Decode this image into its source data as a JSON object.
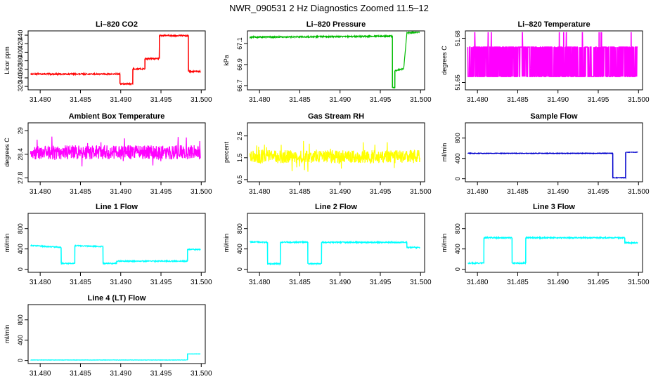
{
  "figure_title": "NWR_090531  2 Hz Diagnostics Zoomed 11.5–12",
  "x_ticks": [
    "31.480",
    "31.485",
    "31.490",
    "31.495",
    "31.500"
  ],
  "chart_data": [
    {
      "type": "line",
      "title": "Li–820 CO2",
      "xlabel": "",
      "ylabel": "Licor ppm",
      "xlim": [
        31.4785,
        31.5005
      ],
      "ylim": [
        312,
        450
      ],
      "y_ticks": [
        320,
        340,
        360,
        380,
        400,
        420,
        440
      ],
      "color": "#ff0000",
      "series": [
        {
          "name": "CO2",
          "x": [
            31.4788,
            31.4899,
            31.4899,
            31.4915,
            31.4915,
            31.493,
            31.493,
            31.4948,
            31.4948,
            31.4984,
            31.4984,
            31.4999
          ],
          "y": [
            349,
            349,
            326,
            326,
            361,
            361,
            385,
            385,
            439,
            439,
            355,
            355
          ]
        }
      ],
      "noise": 1.5
    },
    {
      "type": "line",
      "title": "Li–820 Pressure",
      "xlabel": "",
      "ylabel": "kPa",
      "xlim": [
        31.4785,
        31.5005
      ],
      "ylim": [
        66.66,
        67.22
      ],
      "y_ticks": [
        66.7,
        66.9,
        67.1
      ],
      "color": "#00bb00",
      "series": [
        {
          "name": "Pressure",
          "x": [
            31.4788,
            31.4965,
            31.4965,
            31.4968,
            31.4968,
            31.4979,
            31.4979,
            31.4983,
            31.4983,
            31.4999
          ],
          "y": [
            67.16,
            67.17,
            66.68,
            66.68,
            66.84,
            66.86,
            66.86,
            67.2,
            67.2,
            67.21
          ]
        }
      ],
      "noise": 0.006
    },
    {
      "type": "line",
      "title": "Li–820 Temperature",
      "xlabel": "",
      "ylabel": "degrees C",
      "xlim": [
        31.4785,
        31.5005
      ],
      "ylim": [
        51.645,
        51.685
      ],
      "y_ticks": [
        51.65,
        51.68
      ],
      "color": "#ff00ff",
      "series": [
        {
          "name": "Temperature",
          "x": [
            31.4788,
            31.4999
          ],
          "y": [
            51.664,
            51.664
          ]
        }
      ],
      "noise": 0.01
    },
    {
      "type": "line",
      "title": "Ambient Box Temperature",
      "xlabel": "",
      "ylabel": "degrees C",
      "xlim": [
        31.4785,
        31.5005
      ],
      "ylim": [
        27.7,
        29.2
      ],
      "y_ticks": [
        27.8,
        28.4,
        29.0
      ],
      "color": "#ff00ff",
      "series": [
        {
          "name": "Box temperature",
          "x": [
            31.4788,
            31.4999
          ],
          "y": [
            28.45,
            28.45
          ]
        }
      ],
      "noise": 0.18
    },
    {
      "type": "line",
      "title": "Gas Stream RH",
      "xlabel": "",
      "ylabel": "percent",
      "xlim": [
        31.4785,
        31.5005
      ],
      "ylim": [
        0.4,
        3.1
      ],
      "y_ticks": [
        0.5,
        1.5,
        2.5
      ],
      "color": "#ffff00",
      "series": [
        {
          "name": "RH",
          "x": [
            31.4788,
            31.4999
          ],
          "y": [
            1.55,
            1.55
          ]
        }
      ],
      "noise": 0.3
    },
    {
      "type": "line",
      "title": "Sample Flow",
      "xlabel": "",
      "ylabel": "ml/min",
      "xlim": [
        31.4785,
        31.5005
      ],
      "ylim": [
        -60,
        1100
      ],
      "y_ticks": [
        0,
        400,
        800
      ],
      "color": "#0000cc",
      "series": [
        {
          "name": "Sample flow",
          "x": [
            31.4788,
            31.4968,
            31.4968,
            31.4984,
            31.4984,
            31.4999
          ],
          "y": [
            500,
            500,
            20,
            20,
            520,
            520
          ]
        }
      ],
      "noise": 6
    },
    {
      "type": "line",
      "title": "Line 1 Flow",
      "xlabel": "",
      "ylabel": "ml/min",
      "xlim": [
        31.4785,
        31.5005
      ],
      "ylim": [
        -60,
        1100
      ],
      "y_ticks": [
        0,
        400,
        800
      ],
      "color": "#00ffff",
      "series": [
        {
          "name": "Line 1",
          "x": [
            31.4788,
            31.4826,
            31.4826,
            31.4843,
            31.4843,
            31.4878,
            31.4878,
            31.4895,
            31.4895,
            31.4983,
            31.4983,
            31.4999
          ],
          "y": [
            470,
            430,
            115,
            115,
            465,
            445,
            115,
            115,
            160,
            160,
            390,
            390
          ]
        }
      ],
      "noise": 10
    },
    {
      "type": "line",
      "title": "Line 2 Flow",
      "xlabel": "",
      "ylabel": "ml/min",
      "xlim": [
        31.4785,
        31.5005
      ],
      "ylim": [
        -60,
        1100
      ],
      "y_ticks": [
        0,
        400,
        800
      ],
      "color": "#00ffff",
      "series": [
        {
          "name": "Line 2",
          "x": [
            31.4788,
            31.481,
            31.481,
            31.4826,
            31.4826,
            31.486,
            31.486,
            31.4877,
            31.4877,
            31.4983,
            31.4983,
            31.4999
          ],
          "y": [
            540,
            530,
            110,
            110,
            530,
            535,
            110,
            110,
            530,
            530,
            430,
            430
          ]
        }
      ],
      "noise": 12
    },
    {
      "type": "line",
      "title": "Line 3 Flow",
      "xlabel": "",
      "ylabel": "ml/min",
      "xlim": [
        31.4785,
        31.5005
      ],
      "ylim": [
        -60,
        1100
      ],
      "y_ticks": [
        0,
        400,
        800
      ],
      "color": "#00ffff",
      "series": [
        {
          "name": "Line 3",
          "x": [
            31.4788,
            31.4808,
            31.4808,
            31.4843,
            31.4843,
            31.486,
            31.486,
            31.4983,
            31.4983,
            31.4999
          ],
          "y": [
            120,
            120,
            620,
            620,
            120,
            120,
            620,
            620,
            520,
            520
          ]
        }
      ],
      "noise": 12
    },
    {
      "type": "line",
      "title": "Line 4 (LT) Flow",
      "xlabel": "",
      "ylabel": "ml/min",
      "xlim": [
        31.4785,
        31.5005
      ],
      "ylim": [
        -60,
        1100
      ],
      "y_ticks": [
        0,
        400,
        800
      ],
      "color": "#00ffff",
      "series": [
        {
          "name": "Line 4 (LT)",
          "x": [
            31.4788,
            31.4983,
            31.4983,
            31.4999
          ],
          "y": [
            10,
            10,
            130,
            130
          ]
        }
      ],
      "noise": 3
    }
  ]
}
